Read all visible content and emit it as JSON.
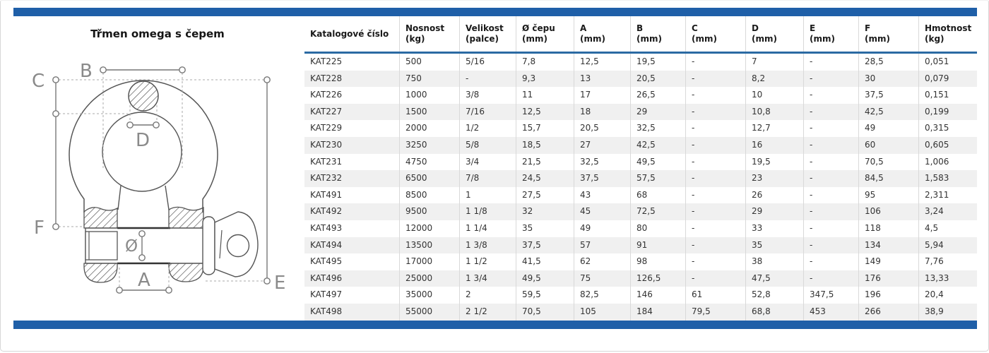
{
  "page": {
    "accent_blue": "#1f5fa8",
    "header_underline_blue": "#2b6aa3",
    "row_stripe": "#f0f0f0",
    "border_gray": "#d7d7d7"
  },
  "diagram": {
    "title": "Třmen omega s čepem",
    "labels": {
      "A": "A",
      "B": "B",
      "C": "C",
      "D": "D",
      "E": "E",
      "F": "F",
      "diameter": "Ø"
    }
  },
  "table": {
    "columns": [
      {
        "label": "Katalogové číslo",
        "sub": ""
      },
      {
        "label": "Nosnost",
        "sub": "(kg)"
      },
      {
        "label": "Velikost",
        "sub": "(palce)"
      },
      {
        "label": "Ø čepu",
        "sub": "(mm)"
      },
      {
        "label": "A",
        "sub": "(mm)"
      },
      {
        "label": "B",
        "sub": "(mm)"
      },
      {
        "label": "C",
        "sub": "(mm)"
      },
      {
        "label": "D",
        "sub": "(mm)"
      },
      {
        "label": "E",
        "sub": "(mm)"
      },
      {
        "label": "F",
        "sub": "(mm)"
      },
      {
        "label": "Hmotnost",
        "sub": "(kg)"
      }
    ],
    "rows": [
      [
        "KAT225",
        "500",
        "5/16",
        "7,8",
        "12,5",
        "19,5",
        "-",
        "7",
        "-",
        "28,5",
        "0,051"
      ],
      [
        "KAT228",
        "750",
        "-",
        "9,3",
        "13",
        "20,5",
        "-",
        "8,2",
        "-",
        "30",
        "0,079"
      ],
      [
        "KAT226",
        "1000",
        "3/8",
        "11",
        "17",
        "26,5",
        "-",
        "10",
        "-",
        "37,5",
        "0,151"
      ],
      [
        "KAT227",
        "1500",
        "7/16",
        "12,5",
        "18",
        "29",
        "-",
        "10,8",
        "-",
        "42,5",
        "0,199"
      ],
      [
        "KAT229",
        "2000",
        "1/2",
        "15,7",
        "20,5",
        "32,5",
        "-",
        "12,7",
        "-",
        "49",
        "0,315"
      ],
      [
        "KAT230",
        "3250",
        "5/8",
        "18,5",
        "27",
        "42,5",
        "-",
        "16",
        "-",
        "60",
        "0,605"
      ],
      [
        "KAT231",
        "4750",
        "3/4",
        "21,5",
        "32,5",
        "49,5",
        "-",
        "19,5",
        "-",
        "70,5",
        "1,006"
      ],
      [
        "KAT232",
        "6500",
        "7/8",
        "24,5",
        "37,5",
        "57,5",
        "-",
        "23",
        "-",
        "84,5",
        "1,583"
      ],
      [
        "KAT491",
        "8500",
        "1",
        "27,5",
        "43",
        "68",
        "-",
        "26",
        "-",
        "95",
        "2,311"
      ],
      [
        "KAT492",
        "9500",
        "1 1/8",
        "32",
        "45",
        "72,5",
        "-",
        "29",
        "-",
        "106",
        "3,24"
      ],
      [
        "KAT493",
        "12000",
        "1 1/4",
        "35",
        "49",
        "80",
        "-",
        "33",
        "-",
        "118",
        "4,5"
      ],
      [
        "KAT494",
        "13500",
        "1 3/8",
        "37,5",
        "57",
        "91",
        "-",
        "35",
        "-",
        "134",
        "5,94"
      ],
      [
        "KAT495",
        "17000",
        "1 1/2",
        "41,5",
        "62",
        "98",
        "-",
        "38",
        "-",
        "149",
        "7,76"
      ],
      [
        "KAT496",
        "25000",
        "1 3/4",
        "49,5",
        "75",
        "126,5",
        "-",
        "47,5",
        "-",
        "176",
        "13,33"
      ],
      [
        "KAT497",
        "35000",
        "2",
        "59,5",
        "82,5",
        "146",
        "61",
        "52,8",
        "347,5",
        "196",
        "20,4"
      ],
      [
        "KAT498",
        "55000",
        "2 1/2",
        "70,5",
        "105",
        "184",
        "79,5",
        "68,8",
        "453",
        "266",
        "38,9"
      ]
    ]
  }
}
